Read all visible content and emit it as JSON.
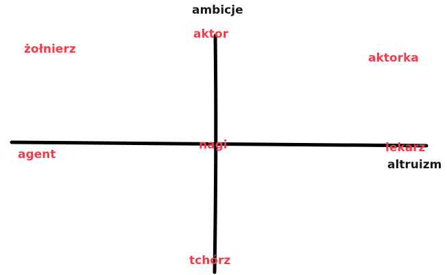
{
  "axes": {
    "vertical_label": "ambicje",
    "horizontal_label": "altruizm"
  },
  "items": {
    "aktor": "aktor",
    "zolnierz": "żołnierz",
    "aktorka": "aktorka",
    "agent": "agent",
    "nagi": "nagi",
    "lekarz": "lekarz",
    "tchorz": "tchórz"
  },
  "colors": {
    "axis": "#000000",
    "axis_label": "#1a1a1a",
    "item": "#f23c4b"
  }
}
